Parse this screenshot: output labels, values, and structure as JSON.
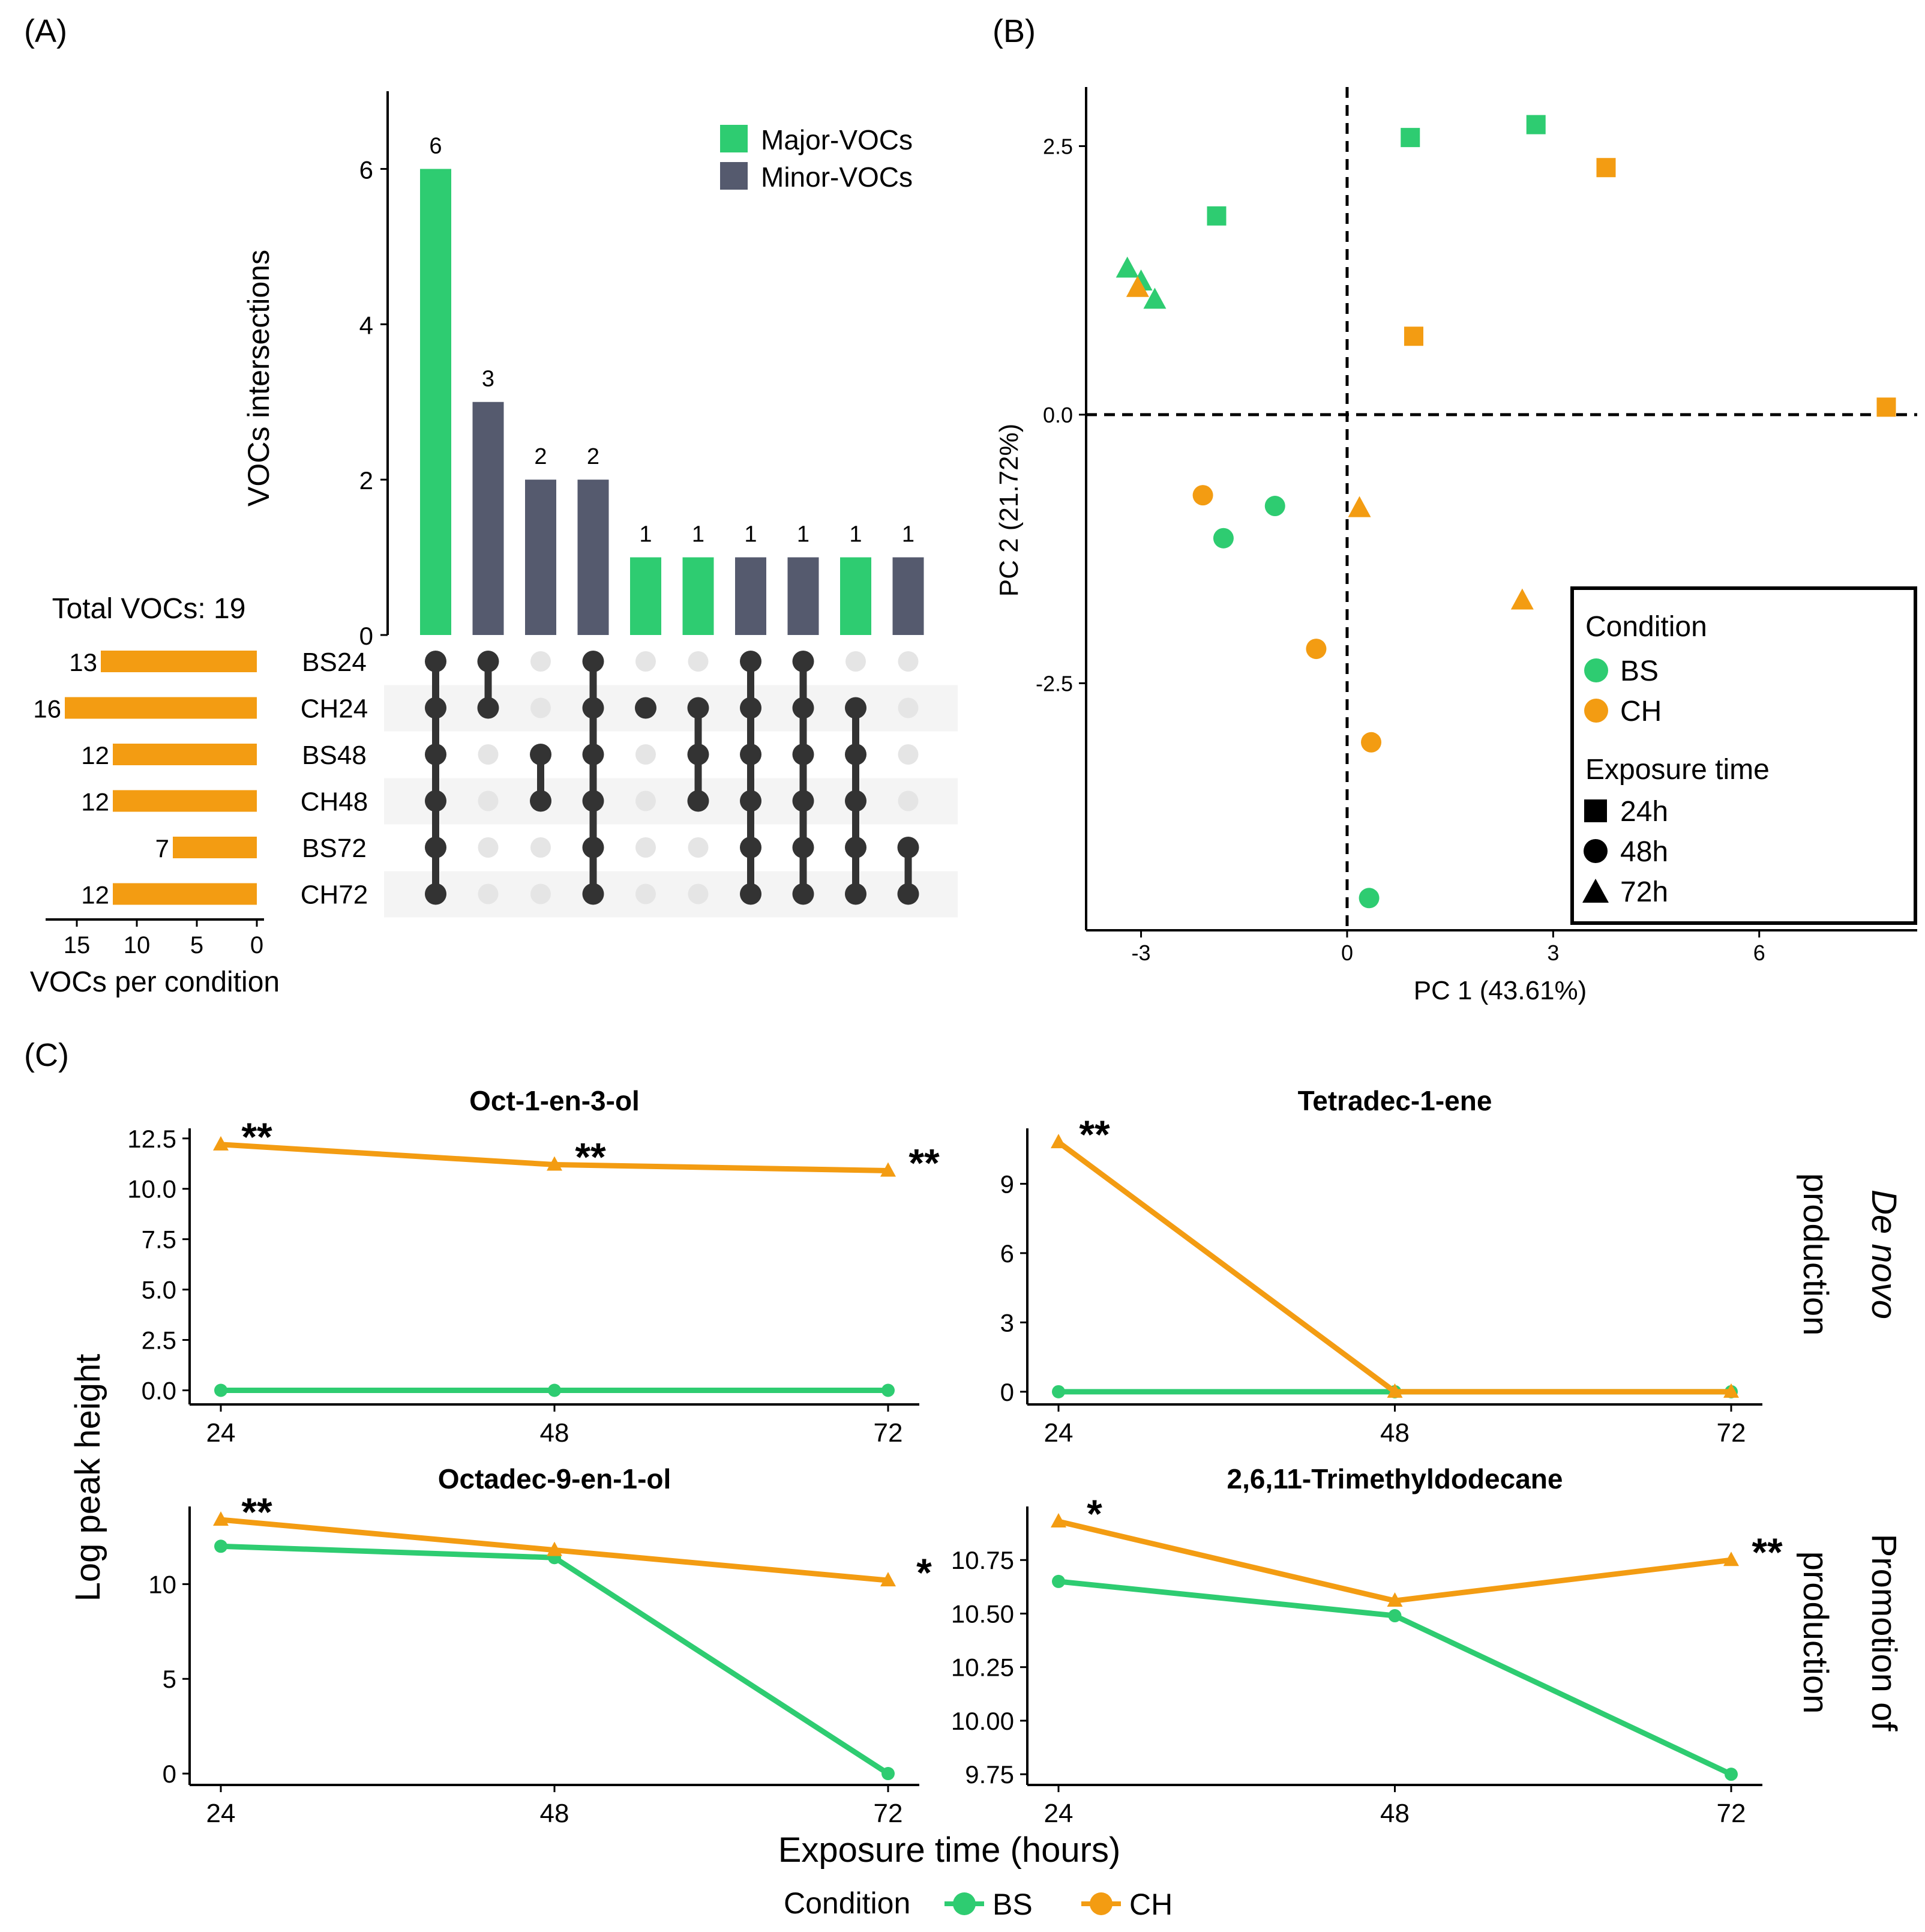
{
  "colors": {
    "major": "#2ecc71",
    "minor": "#555a6e",
    "bs": "#2ecc71",
    "ch": "#f39c12",
    "set_bar": "#f39c12",
    "dot_on": "#333333",
    "dot_off": "#e5e5e5",
    "stripe": "#f4f4f4"
  },
  "chart_data": [
    {
      "id": "A",
      "type": "bar",
      "panel_label": "(A)",
      "y_axis_title": "VOCs intersections",
      "yticks": [
        0,
        2,
        4,
        6
      ],
      "ylim": [
        0,
        7
      ],
      "intersections": [
        {
          "value": 6,
          "label": "6",
          "group": "major",
          "sets": [
            0,
            1,
            2,
            3,
            4,
            5
          ]
        },
        {
          "value": 3,
          "label": "3",
          "group": "minor",
          "sets": [
            0,
            1
          ]
        },
        {
          "value": 2,
          "label": "2",
          "group": "minor",
          "sets": [
            2,
            3
          ]
        },
        {
          "value": 2,
          "label": "2",
          "group": "minor",
          "sets": [
            0,
            1,
            2,
            3,
            4,
            5
          ]
        },
        {
          "value": 1,
          "label": "1",
          "group": "major",
          "sets": [
            1
          ]
        },
        {
          "value": 1,
          "label": "1",
          "group": "major",
          "sets": [
            1,
            2,
            3
          ]
        },
        {
          "value": 1,
          "label": "1",
          "group": "minor",
          "sets": [
            0,
            1,
            2,
            3,
            4,
            5
          ]
        },
        {
          "value": 1,
          "label": "1",
          "group": "minor",
          "sets": [
            0,
            1,
            2,
            3,
            4,
            5
          ]
        },
        {
          "value": 1,
          "label": "1",
          "group": "major",
          "sets": [
            1,
            2,
            3,
            4,
            5
          ]
        },
        {
          "value": 1,
          "label": "1",
          "group": "minor",
          "sets": [
            4,
            5
          ]
        }
      ],
      "legend": [
        {
          "label": "Major-VOCs",
          "group": "major"
        },
        {
          "label": "Minor-VOCs",
          "group": "minor"
        }
      ],
      "set_names": [
        "BS24",
        "CH24",
        "BS48",
        "CH48",
        "BS72",
        "CH72"
      ],
      "set_sizes": [
        13,
        16,
        12,
        12,
        7,
        12
      ],
      "set_size_labels": [
        "13",
        "16",
        "12",
        "12",
        "7",
        "12"
      ],
      "set_xticks": [
        15,
        10,
        5,
        0
      ],
      "set_xlim": [
        0,
        17
      ],
      "set_axis_title": "VOCs per condition",
      "total_label": "Total VOCs: 19"
    },
    {
      "id": "B",
      "type": "scatter",
      "panel_label": "(B)",
      "xlabel": "PC 1 (43.61%)",
      "ylabel": "PC 2 (21.72%)",
      "xlim": [
        -3.8,
        8.3
      ],
      "ylim": [
        -4.8,
        3.05
      ],
      "xticks": [
        -3,
        0,
        3,
        6
      ],
      "yticks": [
        -2.5,
        0.0,
        2.5
      ],
      "xtick_labels": [
        "-3",
        "0",
        "3",
        "6"
      ],
      "ytick_labels": [
        "-2.5",
        "0.0",
        "2.5"
      ],
      "points": [
        {
          "x": 0.92,
          "y": 2.58,
          "cond": "BS",
          "time": "24h"
        },
        {
          "x": 2.75,
          "y": 2.7,
          "cond": "BS",
          "time": "24h"
        },
        {
          "x": -1.9,
          "y": 1.85,
          "cond": "BS",
          "time": "24h"
        },
        {
          "x": 3.77,
          "y": 2.3,
          "cond": "CH",
          "time": "24h"
        },
        {
          "x": 0.97,
          "y": 0.73,
          "cond": "CH",
          "time": "24h"
        },
        {
          "x": 7.85,
          "y": 0.07,
          "cond": "CH",
          "time": "24h"
        },
        {
          "x": -3.2,
          "y": 1.36,
          "cond": "BS",
          "time": "72h"
        },
        {
          "x": -3.0,
          "y": 1.24,
          "cond": "BS",
          "time": "72h"
        },
        {
          "x": -2.8,
          "y": 1.07,
          "cond": "BS",
          "time": "72h"
        },
        {
          "x": -3.05,
          "y": 1.18,
          "cond": "CH",
          "time": "72h"
        },
        {
          "x": 0.18,
          "y": -0.87,
          "cond": "CH",
          "time": "72h"
        },
        {
          "x": 2.55,
          "y": -1.73,
          "cond": "CH",
          "time": "72h"
        },
        {
          "x": -1.05,
          "y": -0.85,
          "cond": "BS",
          "time": "48h"
        },
        {
          "x": -1.8,
          "y": -1.15,
          "cond": "BS",
          "time": "48h"
        },
        {
          "x": 0.32,
          "y": -4.5,
          "cond": "BS",
          "time": "48h"
        },
        {
          "x": -2.1,
          "y": -0.75,
          "cond": "CH",
          "time": "48h"
        },
        {
          "x": -0.45,
          "y": -2.18,
          "cond": "CH",
          "time": "48h"
        },
        {
          "x": 0.35,
          "y": -3.05,
          "cond": "CH",
          "time": "48h"
        }
      ],
      "legend": {
        "condition_title": "Condition",
        "conditions": [
          "BS",
          "CH"
        ],
        "time_title": "Exposure time",
        "times": [
          "24h",
          "48h",
          "72h"
        ]
      }
    },
    {
      "id": "C",
      "type": "line",
      "panel_label": "(C)",
      "xlabel": "Exposure time (hours)",
      "ylabel": "Log peak height",
      "x": [
        24,
        48,
        72
      ],
      "xtick_labels": [
        "24",
        "48",
        "72"
      ],
      "row_labels": [
        {
          "line1": "De novo",
          "line2": "production"
        },
        {
          "line1": "Promotion of",
          "line2": "production"
        }
      ],
      "legend": {
        "title": "Condition",
        "items": [
          "BS",
          "CH"
        ]
      },
      "subplots": [
        {
          "title": "Oct-1-en-3-ol",
          "ylim": [
            -0.7,
            13.0
          ],
          "yticks": [
            0,
            2.5,
            5,
            7.5,
            10,
            12.5
          ],
          "ytick_labels": [
            "0.0",
            "2.5",
            "5.0",
            "7.5",
            "10.0",
            "12.5"
          ],
          "series": [
            {
              "name": "BS",
              "values": [
                0,
                0,
                0
              ]
            },
            {
              "name": "CH",
              "values": [
                12.2,
                11.2,
                10.9
              ]
            }
          ],
          "annotations": [
            {
              "x": 24,
              "y": 12.2,
              "text": "**"
            },
            {
              "x": 48,
              "y": 11.2,
              "text": "**"
            },
            {
              "x": 72,
              "y": 10.9,
              "text": "**"
            }
          ]
        },
        {
          "title": "Tetradec-1-ene",
          "ylim": [
            -0.55,
            11.4
          ],
          "yticks": [
            0,
            3,
            6,
            9
          ],
          "ytick_labels": [
            "0",
            "3",
            "6",
            "9"
          ],
          "series": [
            {
              "name": "BS",
              "values": [
                0,
                0,
                0
              ]
            },
            {
              "name": "CH",
              "values": [
                10.8,
                0,
                0
              ]
            }
          ],
          "annotations": [
            {
              "x": 24,
              "y": 10.8,
              "text": "**"
            }
          ]
        },
        {
          "title": "Octadec-9-en-1-ol",
          "ylim": [
            -0.6,
            14.1
          ],
          "yticks": [
            0,
            5,
            10
          ],
          "ytick_labels": [
            "0",
            "5",
            "10"
          ],
          "series": [
            {
              "name": "BS",
              "values": [
                12.0,
                11.4,
                0
              ]
            },
            {
              "name": "CH",
              "values": [
                13.4,
                11.8,
                10.2
              ]
            }
          ],
          "annotations": [
            {
              "x": 24,
              "y": 13.4,
              "text": "**"
            },
            {
              "x": 72,
              "y": 10.2,
              "text": "*"
            }
          ]
        },
        {
          "title": "2,6,11-Trimethyldodecane",
          "ylim": [
            9.7,
            11.0
          ],
          "yticks": [
            9.75,
            10.0,
            10.25,
            10.5,
            10.75
          ],
          "ytick_labels": [
            "9.75",
            "10.00",
            "10.25",
            "10.50",
            "10.75"
          ],
          "series": [
            {
              "name": "BS",
              "values": [
                10.65,
                10.49,
                9.75
              ]
            },
            {
              "name": "CH",
              "values": [
                10.93,
                10.56,
                10.75
              ]
            }
          ],
          "annotations": [
            {
              "x": 24,
              "y": 10.93,
              "text": "*"
            },
            {
              "x": 72,
              "y": 10.75,
              "text": "**"
            }
          ]
        }
      ]
    }
  ]
}
